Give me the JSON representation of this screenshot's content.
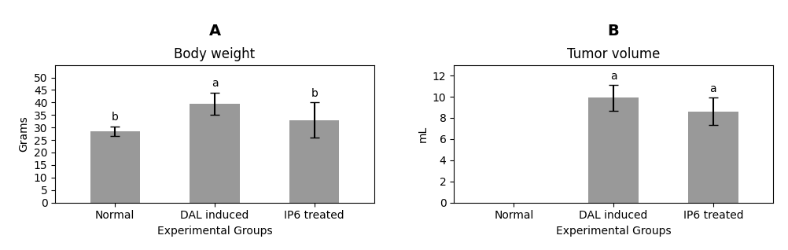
{
  "chart_data": [
    {
      "type": "bar",
      "panel": "A",
      "title": "Body weight",
      "xlabel": "Experimental Groups",
      "ylabel": "Grams",
      "categories": [
        "Normal",
        "DAL induced",
        "IP6 treated"
      ],
      "values": [
        28.5,
        39.5,
        33.0
      ],
      "errors": [
        2.0,
        4.5,
        7.0
      ],
      "annotations": [
        "b",
        "a",
        "b"
      ],
      "color": "#999999",
      "ylim": [
        0,
        55
      ],
      "yticks": [
        0,
        5,
        10,
        15,
        20,
        25,
        30,
        35,
        40,
        45,
        50
      ]
    },
    {
      "type": "bar",
      "panel": "B",
      "title": "Tumor volume",
      "xlabel": "Experimental Groups",
      "ylabel": "mL",
      "categories": [
        "Normal",
        "DAL induced",
        "IP6 treated"
      ],
      "values": [
        0,
        9.9,
        8.6
      ],
      "errors": [
        0,
        1.2,
        1.3
      ],
      "annotations": [
        null,
        "a",
        "a"
      ],
      "color": "#999999",
      "ylim": [
        0,
        13
      ],
      "yticks": [
        0,
        2,
        4,
        6,
        8,
        10,
        12
      ]
    }
  ]
}
